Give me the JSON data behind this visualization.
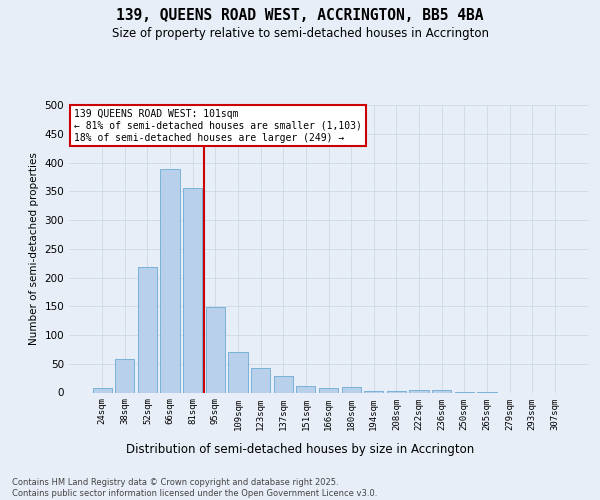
{
  "title_line1": "139, QUEENS ROAD WEST, ACCRINGTON, BB5 4BA",
  "title_line2": "Size of property relative to semi-detached houses in Accrington",
  "xlabel": "Distribution of semi-detached houses by size in Accrington",
  "ylabel": "Number of semi-detached properties",
  "categories": [
    "24sqm",
    "38sqm",
    "52sqm",
    "66sqm",
    "81sqm",
    "95sqm",
    "109sqm",
    "123sqm",
    "137sqm",
    "151sqm",
    "166sqm",
    "180sqm",
    "194sqm",
    "208sqm",
    "222sqm",
    "236sqm",
    "250sqm",
    "265sqm",
    "279sqm",
    "293sqm",
    "307sqm"
  ],
  "values": [
    7,
    58,
    219,
    388,
    355,
    148,
    70,
    42,
    29,
    12,
    8,
    10,
    3,
    2,
    4,
    4,
    1,
    1,
    0,
    0,
    0
  ],
  "bar_color": "#b8d0ea",
  "bar_edge_color": "#6aaad4",
  "vline_x": 4.52,
  "vline_color": "#cc0000",
  "ylim": [
    0,
    500
  ],
  "yticks": [
    0,
    50,
    100,
    150,
    200,
    250,
    300,
    350,
    400,
    450,
    500
  ],
  "annotation_line1": "139 QUEENS ROAD WEST: 101sqm",
  "annotation_line2": "← 81% of semi-detached houses are smaller (1,103)",
  "annotation_line3": "18% of semi-detached houses are larger (249) →",
  "annotation_box_color": "#ffffff",
  "annotation_box_edge": "#cc0000",
  "footer_text": "Contains HM Land Registry data © Crown copyright and database right 2025.\nContains public sector information licensed under the Open Government Licence v3.0.",
  "bg_color": "#e8eef8",
  "grid_color": "#c8d4e4"
}
